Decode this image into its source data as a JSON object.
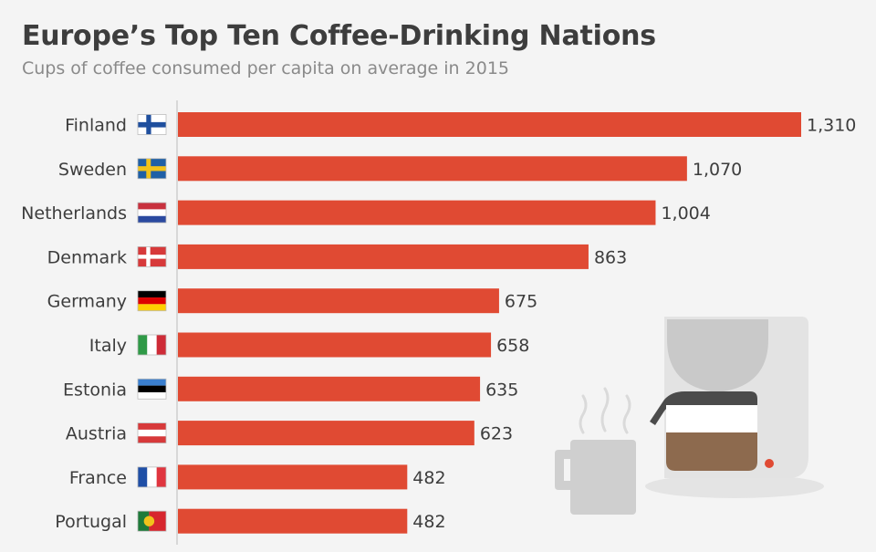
{
  "header": {
    "title": "Europe’s Top Ten Coffee-Drinking Nations",
    "subtitle": "Cups of coffee consumed per capita on average in 2015"
  },
  "colors": {
    "bar": "#e04a33",
    "axis": "#cfcfcf",
    "label": "#3d3d3d"
  },
  "chart_data": {
    "type": "bar",
    "orientation": "horizontal",
    "categories": [
      "Finland",
      "Sweden",
      "Netherlands",
      "Denmark",
      "Germany",
      "Italy",
      "Estonia",
      "Austria",
      "France",
      "Portugal"
    ],
    "values": [
      1310,
      1070,
      1004,
      863,
      675,
      658,
      635,
      623,
      482,
      482
    ],
    "value_labels": [
      "1,310",
      "1,070",
      "1,004",
      "863",
      "675",
      "658",
      "635",
      "623",
      "482",
      "482"
    ],
    "flag_icons": [
      "finland-flag-icon",
      "sweden-flag-icon",
      "netherlands-flag-icon",
      "denmark-flag-icon",
      "germany-flag-icon",
      "italy-flag-icon",
      "estonia-flag-icon",
      "austria-flag-icon",
      "france-flag-icon",
      "portugal-flag-icon"
    ],
    "xlim": [
      0,
      1310
    ],
    "grid": false,
    "legend": "none"
  },
  "illustration": {
    "icons": [
      "coffee-mug-icon",
      "steam-icon",
      "coffee-machine-icon"
    ]
  }
}
